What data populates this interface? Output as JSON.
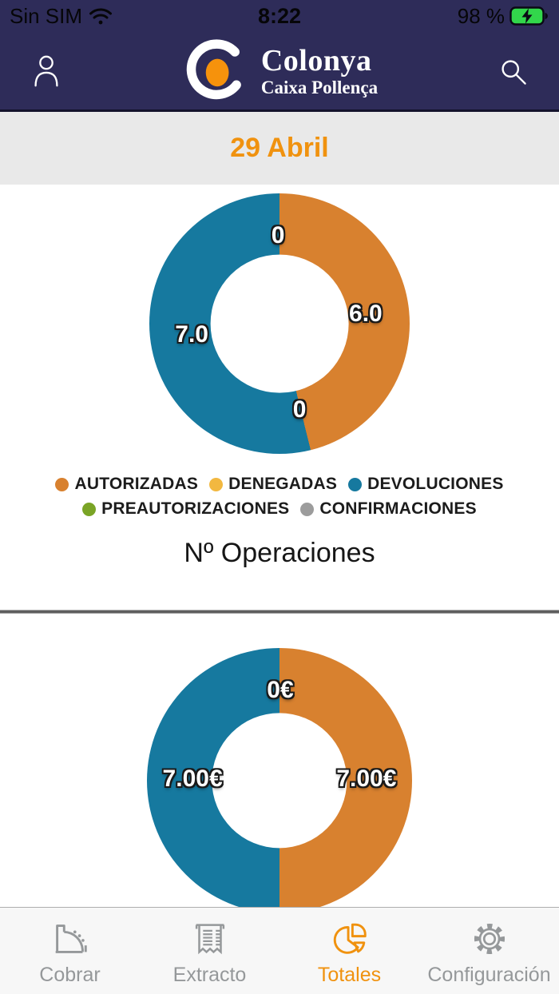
{
  "colors": {
    "header_navy": "#2e2c59",
    "accent_orange": "#f0920f",
    "chart_orange": "#d8812f",
    "chart_teal": "#16799f",
    "legend_yellow": "#f2b840",
    "legend_green": "#7aa426",
    "legend_gray": "#9c9c9c",
    "battery_green": "#32d74b",
    "date_strip_bg": "#e9e9e9",
    "tabbar_bg": "#f7f7f7",
    "tab_inactive": "#95989a"
  },
  "status_bar": {
    "carrier": "Sin SIM",
    "time": "8:22",
    "battery_percent": "98 %"
  },
  "header": {
    "logo_title": "Colonya",
    "logo_subtitle": "Caixa Pollença"
  },
  "date_bar": {
    "label": "29 Abril"
  },
  "chart_data": [
    {
      "type": "donut",
      "title": "Nº Operaciones",
      "units": "operations",
      "hole_ratio": 0.53,
      "series": [
        {
          "name": "AUTORIZADAS",
          "value": 6,
          "color": "#d8812f"
        },
        {
          "name": "DENEGADAS",
          "value": 0,
          "color": "#f2b840"
        },
        {
          "name": "DEVOLUCIONES",
          "value": 7,
          "color": "#16799f"
        },
        {
          "name": "PREAUTORIZACIONES",
          "value": 0,
          "color": "#7aa426"
        },
        {
          "name": "CONFIRMACIONES",
          "value": 0,
          "color": "#9c9c9c"
        }
      ],
      "slice_labels": [
        {
          "text": "0",
          "x": 49.4,
          "y": 16.3
        },
        {
          "text": "6.0",
          "x": 83.1,
          "y": 46.3
        },
        {
          "text": "0",
          "x": 57.7,
          "y": 83.1
        },
        {
          "text": "7.0",
          "x": 16.3,
          "y": 54.3
        }
      ],
      "legend_position": "bottom"
    },
    {
      "type": "donut",
      "title": "",
      "units": "EUR",
      "hole_ratio": 0.51,
      "series": [
        {
          "name": "AUTORIZADAS",
          "value": 7.0,
          "color": "#d8812f"
        },
        {
          "name": "DENEGADAS",
          "value": 0,
          "color": "#f2b840"
        },
        {
          "name": "DEVOLUCIONES",
          "value": 7.0,
          "color": "#16799f"
        },
        {
          "name": "PREAUTORIZACIONES",
          "value": 0,
          "color": "#7aa426"
        },
        {
          "name": "CONFIRMACIONES",
          "value": 0,
          "color": "#9c9c9c"
        }
      ],
      "slice_labels": [
        {
          "text": "0€",
          "x": 50.3,
          "y": 16.0
        },
        {
          "text": "7.00€",
          "x": 17.2,
          "y": 49.4
        },
        {
          "text": "7.00€",
          "x": 82.8,
          "y": 49.4
        }
      ],
      "legend_position": "none"
    }
  ],
  "legend": {
    "items": [
      {
        "label": "AUTORIZADAS",
        "color": "#d8812f"
      },
      {
        "label": "DENEGADAS",
        "color": "#f2b840"
      },
      {
        "label": "DEVOLUCIONES",
        "color": "#16799f"
      },
      {
        "label": "PREAUTORIZACIONES",
        "color": "#7aa426"
      },
      {
        "label": "CONFIRMACIONES",
        "color": "#9c9c9c"
      }
    ]
  },
  "tab_bar": {
    "items": [
      {
        "id": "cobrar",
        "label": "Cobrar",
        "icon": "cash-register-icon",
        "active": false
      },
      {
        "id": "extracto",
        "label": "Extracto",
        "icon": "receipt-icon",
        "active": false
      },
      {
        "id": "totales",
        "label": "Totales",
        "icon": "pie-chart-icon",
        "active": true
      },
      {
        "id": "configuracion",
        "label": "Configuración",
        "icon": "gear-icon",
        "active": false
      }
    ],
    "active_color": "#f0920f",
    "inactive_color": "#95989a"
  }
}
